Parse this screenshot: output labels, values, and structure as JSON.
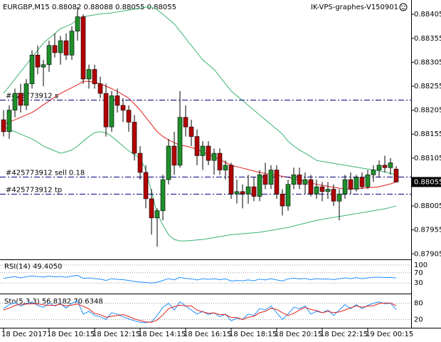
{
  "chart_data": {
    "type": "candlestick",
    "title": "EURGBP,M15",
    "watermark": "IK-VPS-graphes-V150901",
    "categories": [
      "18 Dec 2017",
      null,
      null,
      null,
      null,
      null,
      null,
      null,
      "18 Dec 10:15",
      null,
      null,
      null,
      null,
      null,
      null,
      null,
      "18 Dec 12:15",
      null,
      null,
      null,
      null,
      null,
      null,
      null,
      "18 Dec 14:15",
      null,
      null,
      null,
      null,
      null,
      null,
      null,
      "18 Dec 16:15",
      null,
      null,
      null,
      null,
      null,
      null,
      null,
      "18 Dec 18:15",
      null,
      null,
      null,
      null,
      null,
      null,
      null,
      "18 Dec 20:15",
      null,
      null,
      null,
      null,
      null,
      null,
      null,
      "18 Dec 22:15",
      null,
      null,
      null,
      null,
      null,
      null,
      null,
      "19 Dec 00:15",
      null,
      null,
      null,
      null,
      null
    ],
    "open": [
      0.88185,
      0.8816,
      0.88205,
      0.8824,
      0.88215,
      0.8826,
      0.8832,
      0.88295,
      0.883,
      0.8834,
      0.88325,
      0.8835,
      0.8832,
      0.8837,
      0.884,
      0.8827,
      0.8829,
      0.8826,
      0.8824,
      0.8817,
      0.88235,
      0.88215,
      0.88205,
      0.8818,
      0.88115,
      0.88075,
      0.8802,
      0.8798,
      0.87995,
      0.8806,
      0.8813,
      0.8809,
      0.8819,
      0.8817,
      0.8815,
      0.8811,
      0.8813,
      0.881,
      0.88115,
      0.8808,
      0.8809,
      0.8803,
      0.88035,
      0.8803,
      0.88045,
      0.88025,
      0.8807,
      0.8805,
      0.8808,
      0.8803,
      0.88005,
      0.8805,
      0.8807,
      0.8805,
      0.8806,
      0.8803,
      0.88045,
      0.88035,
      0.8804,
      0.88015,
      0.8803,
      0.8806,
      0.8804,
      0.88065,
      0.88045,
      0.8807,
      0.8808,
      0.8809,
      0.88085,
      0.88082
    ],
    "high": [
      0.88205,
      0.88215,
      0.8825,
      0.8826,
      0.8827,
      0.8833,
      0.8834,
      0.8831,
      0.8835,
      0.88365,
      0.8836,
      0.88365,
      0.8838,
      0.8842,
      0.88405,
      0.883,
      0.883,
      0.88275,
      0.8826,
      0.88245,
      0.8825,
      0.8823,
      0.88215,
      0.88195,
      0.8813,
      0.8809,
      0.8804,
      0.88,
      0.8807,
      0.88145,
      0.8816,
      0.88245,
      0.88215,
      0.88185,
      0.88165,
      0.8814,
      0.8814,
      0.88125,
      0.88125,
      0.881,
      0.88095,
      0.8806,
      0.8805,
      0.8807,
      0.88065,
      0.8808,
      0.88095,
      0.8809,
      0.8809,
      0.8804,
      0.8806,
      0.88085,
      0.88085,
      0.88075,
      0.8807,
      0.8806,
      0.88055,
      0.88055,
      0.8805,
      0.8804,
      0.8807,
      0.88075,
      0.8807,
      0.88075,
      0.8808,
      0.8809,
      0.881,
      0.8811,
      0.88105,
      0.88088
    ],
    "low": [
      0.8815,
      0.88145,
      0.8819,
      0.882,
      0.88205,
      0.8825,
      0.8828,
      0.88255,
      0.88285,
      0.88315,
      0.883,
      0.8831,
      0.8831,
      0.8835,
      0.8826,
      0.8825,
      0.8825,
      0.8823,
      0.8815,
      0.8816,
      0.882,
      0.8818,
      0.8816,
      0.881,
      0.8806,
      0.88,
      0.87945,
      0.8792,
      0.87975,
      0.8805,
      0.8807,
      0.88085,
      0.8815,
      0.8813,
      0.8809,
      0.8808,
      0.8809,
      0.8807,
      0.8807,
      0.8806,
      0.8802,
      0.8801,
      0.88,
      0.8801,
      0.88015,
      0.88015,
      0.8804,
      0.8804,
      0.8802,
      0.87985,
      0.87995,
      0.8804,
      0.8804,
      0.8803,
      0.88025,
      0.8802,
      0.88015,
      0.8802,
      0.88005,
      0.87975,
      0.8802,
      0.8803,
      0.88035,
      0.8804,
      0.8804,
      0.88055,
      0.88065,
      0.88075,
      0.8807,
      0.88055
    ],
    "close": [
      0.8816,
      0.88205,
      0.8824,
      0.88215,
      0.8826,
      0.8832,
      0.88295,
      0.883,
      0.8834,
      0.88325,
      0.8835,
      0.8832,
      0.8837,
      0.884,
      0.8827,
      0.8829,
      0.8826,
      0.8824,
      0.8817,
      0.88235,
      0.88215,
      0.88205,
      0.8818,
      0.88115,
      0.88075,
      0.8802,
      0.8798,
      0.87995,
      0.8806,
      0.8813,
      0.8809,
      0.8819,
      0.8817,
      0.8815,
      0.8811,
      0.8813,
      0.881,
      0.88115,
      0.8808,
      0.8809,
      0.8803,
      0.88035,
      0.8803,
      0.88045,
      0.88025,
      0.8807,
      0.8805,
      0.8808,
      0.8803,
      0.88005,
      0.8805,
      0.8807,
      0.8805,
      0.8806,
      0.8803,
      0.88045,
      0.88035,
      0.8804,
      0.88015,
      0.8803,
      0.8806,
      0.8804,
      0.88065,
      0.88045,
      0.8807,
      0.8808,
      0.8809,
      0.88085,
      0.88095,
      0.88055
    ],
    "bull_color": "#1f8f2a",
    "bear_color": "#b30000",
    "bands": [
      {
        "color": "#3cb371",
        "values": [
          0.8824,
          0.88255,
          0.8827,
          0.88285,
          0.883,
          0.88315,
          0.8833,
          0.88345,
          0.88355,
          0.88365,
          0.88375,
          0.8838,
          0.88385,
          0.88395,
          0.884,
          0.88402,
          0.88404,
          0.88406,
          0.88407,
          0.88408,
          0.8841,
          0.88412,
          0.88414,
          0.88416,
          0.88418,
          0.8842,
          0.8842,
          0.88415,
          0.88405,
          0.88395,
          0.88385,
          0.8837,
          0.88355,
          0.8834,
          0.88325,
          0.8831,
          0.883,
          0.8829,
          0.88275,
          0.8826,
          0.88245,
          0.88235,
          0.88225,
          0.88215,
          0.88205,
          0.88195,
          0.88185,
          0.88175,
          0.88165,
          0.88155,
          0.8814,
          0.8813,
          0.88122,
          0.88115,
          0.88108,
          0.881,
          0.88098,
          0.88096,
          0.88094,
          0.88092,
          0.8809,
          0.88088,
          0.88086,
          0.88084,
          0.88082,
          0.8808,
          0.88078,
          0.88076,
          0.88073,
          0.8807
        ]
      },
      {
        "color": "#e0201a",
        "values": [
          0.88175,
          0.8818,
          0.88185,
          0.8819,
          0.88195,
          0.882,
          0.88208,
          0.88216,
          0.88224,
          0.88232,
          0.8824,
          0.88246,
          0.88252,
          0.88258,
          0.88265,
          0.88265,
          0.88263,
          0.8826,
          0.88255,
          0.8825,
          0.88244,
          0.88237,
          0.8823,
          0.88218,
          0.88205,
          0.8819,
          0.88175,
          0.8816,
          0.8815,
          0.88143,
          0.88137,
          0.88132,
          0.8813,
          0.88127,
          0.88123,
          0.88118,
          0.88112,
          0.88107,
          0.88102,
          0.88096,
          0.8809,
          0.88087,
          0.88084,
          0.88081,
          0.88078,
          0.88075,
          0.88073,
          0.88071,
          0.88069,
          0.88067,
          0.88065,
          0.88062,
          0.88059,
          0.88056,
          0.88053,
          0.8805,
          0.88048,
          0.88046,
          0.88044,
          0.88042,
          0.8804,
          0.8804,
          0.88041,
          0.88042,
          0.88043,
          0.88044,
          0.88045,
          0.88048,
          0.88051,
          0.88055
        ]
      },
      {
        "color": "#3cb371",
        "values": [
          0.8817,
          0.88165,
          0.8816,
          0.88155,
          0.8815,
          0.88145,
          0.88138,
          0.8813,
          0.88125,
          0.8812,
          0.88115,
          0.88118,
          0.88122,
          0.8813,
          0.8814,
          0.8815,
          0.88158,
          0.8816,
          0.88158,
          0.8815,
          0.8814,
          0.8813,
          0.8812,
          0.88112,
          0.88105,
          0.8808,
          0.88035,
          0.8799,
          0.87965,
          0.87945,
          0.87935,
          0.87932,
          0.87932,
          0.87933,
          0.87934,
          0.87935,
          0.87937,
          0.87939,
          0.87941,
          0.87943,
          0.87945,
          0.87946,
          0.87947,
          0.87948,
          0.87949,
          0.8795,
          0.87952,
          0.87954,
          0.87956,
          0.87958,
          0.8796,
          0.87963,
          0.87966,
          0.87969,
          0.87972,
          0.87975,
          0.87977,
          0.87979,
          0.87981,
          0.87983,
          0.87985,
          0.87987,
          0.87989,
          0.87991,
          0.87993,
          0.87995,
          0.87997,
          0.87999,
          0.88002,
          0.88005
        ]
      }
    ],
    "orders": [
      {
        "label": "#425773912 s",
        "price": 0.88226
      },
      {
        "label": "#425773912 sell 0.18",
        "price": 0.88066
      },
      {
        "label": "#425773912 tp",
        "price": 0.8803
      }
    ],
    "ylim": [
      0.87895,
      0.88435
    ],
    "yticks": [
      0.88405,
      0.88355,
      0.88305,
      0.88255,
      0.88205,
      0.88155,
      0.88105,
      0.88005,
      0.87955,
      0.87905
    ],
    "rsi": {
      "title": "RSI(14) 49.4050",
      "color": "#1e90ff",
      "ylim": [
        0,
        100
      ],
      "yticks": [
        30,
        70,
        100
      ],
      "values": [
        48,
        52,
        55,
        50,
        54,
        58,
        55,
        53,
        57,
        54,
        56,
        52,
        57,
        60,
        48,
        50,
        47,
        45,
        40,
        47,
        44,
        43,
        40,
        36,
        34,
        32,
        30,
        33,
        40,
        47,
        42,
        52,
        48,
        46,
        42,
        47,
        44,
        47,
        43,
        46,
        38,
        40,
        39,
        42,
        39,
        45,
        42,
        47,
        42,
        38,
        46,
        49,
        46,
        48,
        43,
        47,
        45,
        46,
        43,
        47,
        50,
        47,
        51,
        47,
        50,
        52,
        53,
        51,
        52,
        49.405
      ]
    },
    "stoch": {
      "title": "Sto(5,3,3) 56.8182 70.6348",
      "ylim": [
        0,
        100
      ],
      "yticks": [
        20,
        80
      ],
      "main_color": "#1e90ff",
      "signal_color": "#e0201a",
      "main": [
        60,
        75,
        82,
        70,
        78,
        85,
        72,
        65,
        80,
        70,
        78,
        62,
        80,
        88,
        40,
        50,
        35,
        30,
        20,
        45,
        40,
        30,
        22,
        15,
        10,
        8,
        12,
        35,
        65,
        80,
        55,
        85,
        70,
        55,
        40,
        50,
        38,
        45,
        30,
        40,
        15,
        25,
        20,
        40,
        35,
        60,
        55,
        70,
        45,
        20,
        40,
        65,
        60,
        70,
        40,
        50,
        45,
        55,
        35,
        55,
        75,
        60,
        75,
        60,
        72,
        80,
        85,
        78,
        80,
        56.8182
      ],
      "signal": [
        55,
        62,
        72,
        76,
        77,
        78,
        78,
        74,
        72,
        72,
        76,
        70,
        73,
        77,
        69,
        59,
        42,
        38,
        28,
        32,
        35,
        38,
        31,
        22,
        16,
        11,
        10,
        18,
        37,
        60,
        67,
        73,
        70,
        70,
        55,
        48,
        43,
        44,
        38,
        38,
        28,
        27,
        20,
        28,
        32,
        45,
        50,
        62,
        57,
        45,
        35,
        42,
        55,
        65,
        57,
        53,
        45,
        50,
        45,
        48,
        55,
        63,
        70,
        65,
        69,
        71,
        79,
        81,
        81,
        70.6348
      ]
    }
  }
}
